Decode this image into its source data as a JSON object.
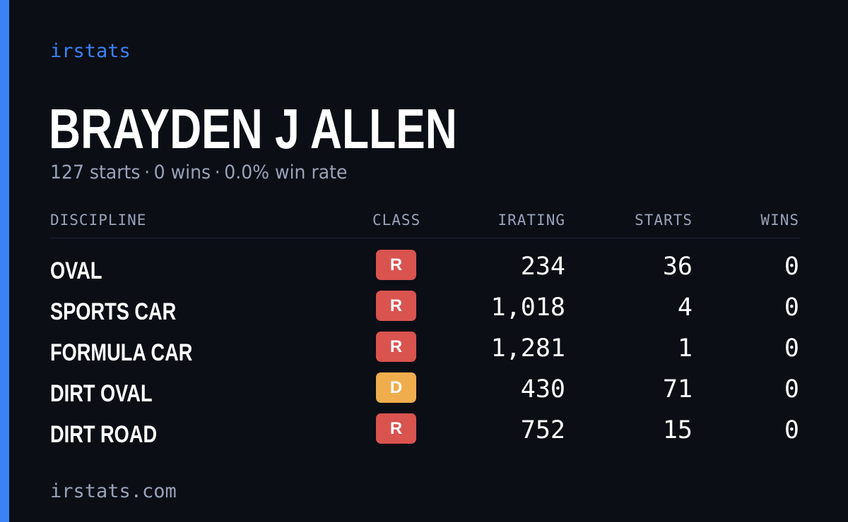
{
  "brand": "irstats",
  "driver": {
    "name": "BRAYDEN J ALLEN",
    "starts": "127 starts",
    "wins": "0 wins",
    "win_rate": "0.0% win rate",
    "separator": "·"
  },
  "table": {
    "headers": {
      "discipline": "DISCIPLINE",
      "class": "CLASS",
      "irating": "IRATING",
      "starts": "STARTS",
      "wins": "WINS"
    },
    "rows": [
      {
        "discipline": "OVAL",
        "class": "R",
        "irating": "234",
        "starts": "36",
        "wins": "0"
      },
      {
        "discipline": "SPORTS CAR",
        "class": "R",
        "irating": "1,018",
        "starts": "4",
        "wins": "0"
      },
      {
        "discipline": "FORMULA CAR",
        "class": "R",
        "irating": "1,281",
        "starts": "1",
        "wins": "0"
      },
      {
        "discipline": "DIRT OVAL",
        "class": "D",
        "irating": "430",
        "starts": "71",
        "wins": "0"
      },
      {
        "discipline": "DIRT ROAD",
        "class": "R",
        "irating": "752",
        "starts": "15",
        "wins": "0"
      }
    ]
  },
  "class_colors": {
    "R": "#d9534f",
    "D": "#f0ad4e"
  },
  "colors": {
    "accent": "#3b82f6",
    "background": "#0b0e15",
    "muted": "#98a2b8"
  },
  "footer": "irstats.com"
}
